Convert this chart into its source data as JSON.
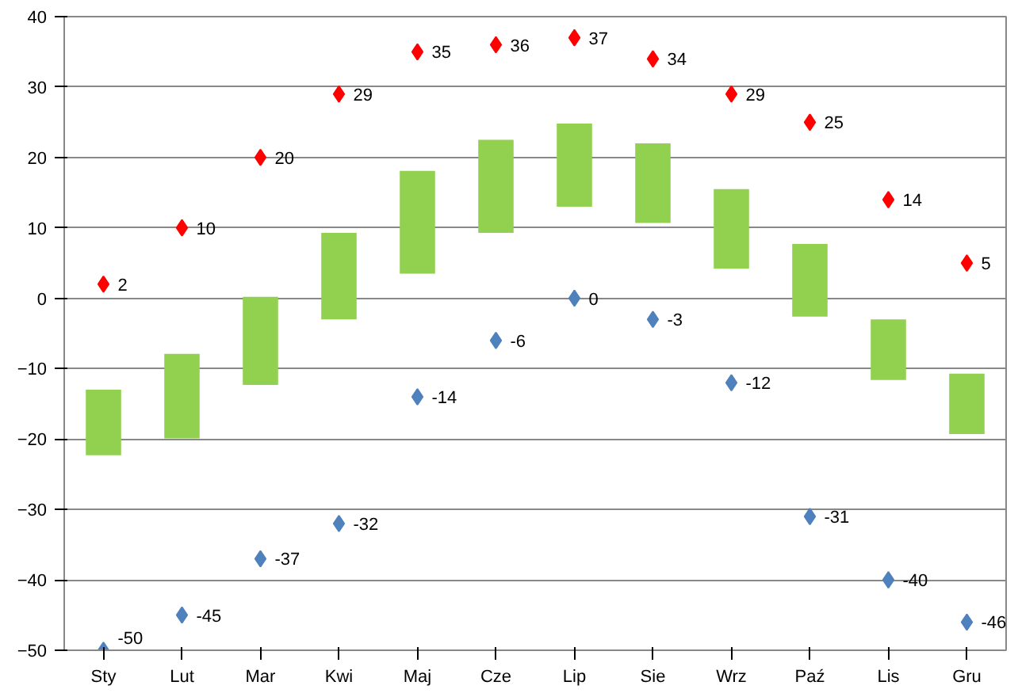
{
  "chart_data": {
    "type": "bar",
    "categories": [
      "Sty",
      "Lut",
      "Mar",
      "Kwi",
      "Maj",
      "Cze",
      "Lip",
      "Sie",
      "Wrz",
      "Paź",
      "Lis",
      "Gru"
    ],
    "series": [
      {
        "color": "#92d050",
        "base": [
          -22.3,
          -19.9,
          -12.3,
          -3,
          3.5,
          9.3,
          13,
          10.7,
          4.2,
          -2.6,
          -11.6,
          -19.3
        ],
        "values": [
          9.3,
          12,
          12.5,
          12.3,
          14.6,
          13.2,
          11.8,
          11.3,
          11.3,
          10.3,
          8.6,
          8.6
        ]
      },
      {
        "type": "scatter",
        "color": "#ff0000",
        "marker": "diamond",
        "values": [
          2,
          10,
          20,
          29,
          35,
          36,
          37,
          34,
          29,
          25,
          14,
          5
        ],
        "value_labels": [
          "2",
          "10",
          "20",
          "29",
          "35",
          "36",
          "37",
          "34",
          "29",
          "25",
          "14",
          "5"
        ]
      },
      {
        "type": "scatter",
        "color": "#4f81bd",
        "marker": "diamond",
        "values": [
          -50,
          -45,
          -37,
          -32,
          -14,
          -6,
          0,
          -3,
          -12,
          -31,
          -40,
          -46
        ],
        "value_labels": [
          "-50",
          "-45",
          "-37",
          "-32",
          "-14",
          "-6",
          "0",
          "-3",
          "-12",
          "-31",
          "-40",
          "-46"
        ]
      }
    ],
    "ylim": [
      -50,
      40
    ],
    "yticks": [
      -50,
      -40,
      -30,
      -20,
      -10,
      0,
      10,
      20,
      30,
      40
    ],
    "grid": "y"
  }
}
